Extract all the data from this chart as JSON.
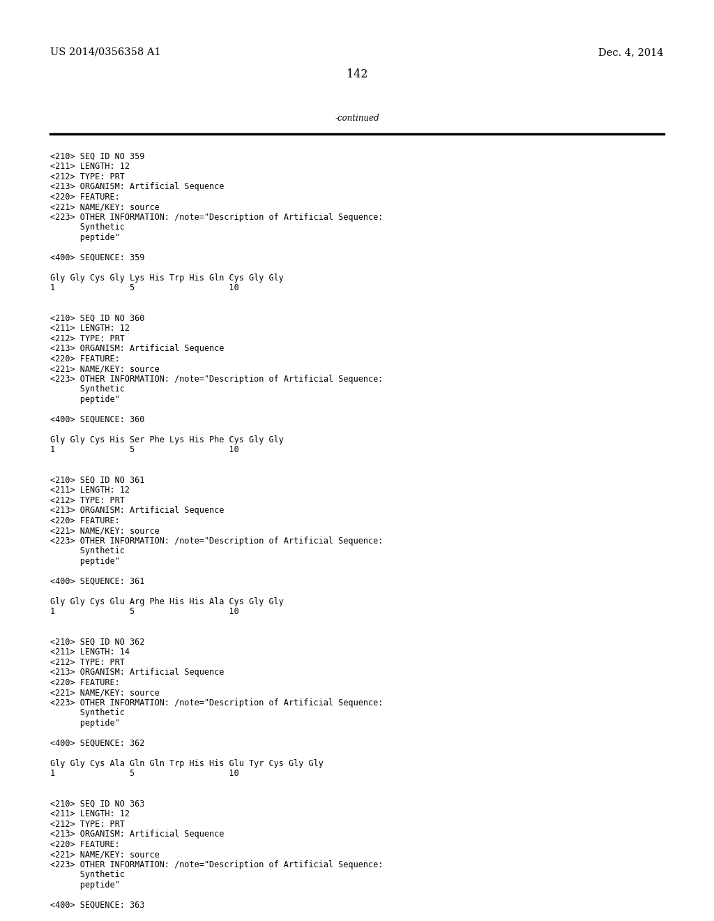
{
  "background_color": "#ffffff",
  "top_left_text": "US 2014/0356358 A1",
  "top_right_text": "Dec. 4, 2014",
  "page_number": "142",
  "continued_text": "-continued",
  "font_size_header": 10.5,
  "font_size_body": 8.5,
  "font_size_page_num": 11.5,
  "mono_font": "DejaVu Sans Mono",
  "serif_font": "DejaVu Serif",
  "body_lines": [
    "<210> SEQ ID NO 359",
    "<211> LENGTH: 12",
    "<212> TYPE: PRT",
    "<213> ORGANISM: Artificial Sequence",
    "<220> FEATURE:",
    "<221> NAME/KEY: source",
    "<223> OTHER INFORMATION: /note=\"Description of Artificial Sequence:",
    "      Synthetic",
    "      peptide\"",
    "",
    "<400> SEQUENCE: 359",
    "",
    "Gly Gly Cys Gly Lys His Trp His Gln Cys Gly Gly",
    "1               5                   10",
    "",
    "",
    "<210> SEQ ID NO 360",
    "<211> LENGTH: 12",
    "<212> TYPE: PRT",
    "<213> ORGANISM: Artificial Sequence",
    "<220> FEATURE:",
    "<221> NAME/KEY: source",
    "<223> OTHER INFORMATION: /note=\"Description of Artificial Sequence:",
    "      Synthetic",
    "      peptide\"",
    "",
    "<400> SEQUENCE: 360",
    "",
    "Gly Gly Cys His Ser Phe Lys His Phe Cys Gly Gly",
    "1               5                   10",
    "",
    "",
    "<210> SEQ ID NO 361",
    "<211> LENGTH: 12",
    "<212> TYPE: PRT",
    "<213> ORGANISM: Artificial Sequence",
    "<220> FEATURE:",
    "<221> NAME/KEY: source",
    "<223> OTHER INFORMATION: /note=\"Description of Artificial Sequence:",
    "      Synthetic",
    "      peptide\"",
    "",
    "<400> SEQUENCE: 361",
    "",
    "Gly Gly Cys Glu Arg Phe His His Ala Cys Gly Gly",
    "1               5                   10",
    "",
    "",
    "<210> SEQ ID NO 362",
    "<211> LENGTH: 14",
    "<212> TYPE: PRT",
    "<213> ORGANISM: Artificial Sequence",
    "<220> FEATURE:",
    "<221> NAME/KEY: source",
    "<223> OTHER INFORMATION: /note=\"Description of Artificial Sequence:",
    "      Synthetic",
    "      peptide\"",
    "",
    "<400> SEQUENCE: 362",
    "",
    "Gly Gly Cys Ala Gln Gln Trp His His Glu Tyr Cys Gly Gly",
    "1               5                   10",
    "",
    "",
    "<210> SEQ ID NO 363",
    "<211> LENGTH: 12",
    "<212> TYPE: PRT",
    "<213> ORGANISM: Artificial Sequence",
    "<220> FEATURE:",
    "<221> NAME/KEY: source",
    "<223> OTHER INFORMATION: /note=\"Description of Artificial Sequence:",
    "      Synthetic",
    "      peptide\"",
    "",
    "<400> SEQUENCE: 363"
  ]
}
